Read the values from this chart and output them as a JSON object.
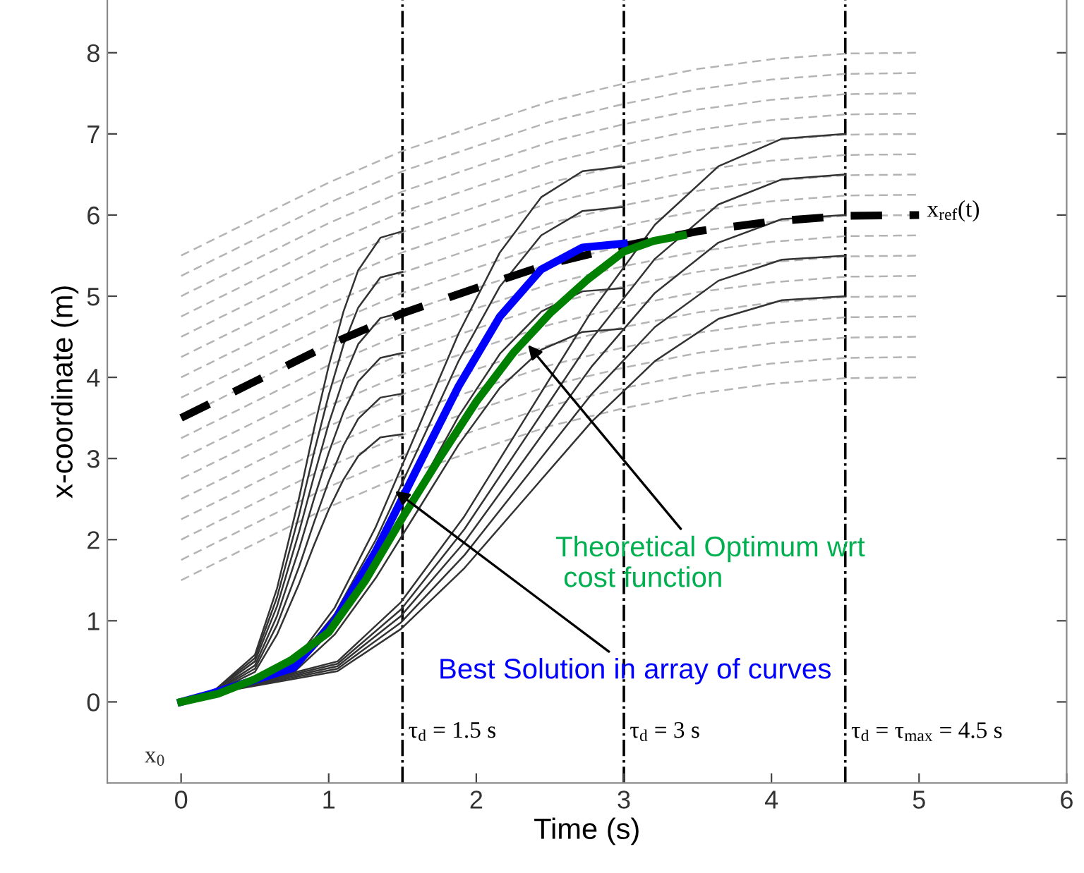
{
  "chart_data": {
    "type": "line",
    "xlabel": "Time (s)",
    "ylabel": "x-coordinate (m)",
    "x": [
      0,
      0.5,
      1,
      1.5,
      2,
      2.5,
      3,
      3.5,
      4,
      4.5,
      5
    ],
    "xlim": [
      -0.5,
      6
    ],
    "ylim": [
      -1,
      8.65
    ],
    "xticks": [
      0,
      1,
      2,
      3,
      4,
      5,
      6
    ],
    "yticks": [
      0,
      1,
      2,
      3,
      4,
      5,
      6,
      7,
      8
    ],
    "grid": false,
    "legend": false,
    "series": [
      {
        "color": "#b4b4b4",
        "line_style": "dashed",
        "values": [
          1.5,
          1.95,
          2.4,
          2.79,
          3.1,
          3.4,
          3.62,
          3.8,
          3.92,
          3.99,
          4
        ]
      },
      {
        "color": "#b4b4b4",
        "line_style": "dashed",
        "values": [
          1.75,
          2.2,
          2.65,
          3.04,
          3.35,
          3.65,
          3.87,
          4.05,
          4.17,
          4.24,
          4.25
        ]
      },
      {
        "color": "#b4b4b4",
        "line_style": "dashed",
        "values": [
          2,
          2.45,
          2.9,
          3.29,
          3.6,
          3.9,
          4.12,
          4.3,
          4.42,
          4.49,
          4.5
        ]
      },
      {
        "color": "#b4b4b4",
        "line_style": "dashed",
        "values": [
          2.25,
          2.7,
          3.15,
          3.54,
          3.85,
          4.15,
          4.37,
          4.55,
          4.67,
          4.74,
          4.75
        ]
      },
      {
        "color": "#b4b4b4",
        "line_style": "dashed",
        "values": [
          2.5,
          2.95,
          3.4,
          3.79,
          4.1,
          4.4,
          4.62,
          4.8,
          4.92,
          4.99,
          5
        ]
      },
      {
        "color": "#b4b4b4",
        "line_style": "dashed",
        "values": [
          2.75,
          3.2,
          3.65,
          4.04,
          4.35,
          4.65,
          4.87,
          5.05,
          5.17,
          5.24,
          5.25
        ]
      },
      {
        "color": "#b4b4b4",
        "line_style": "dashed",
        "values": [
          3,
          3.45,
          3.9,
          4.29,
          4.6,
          4.9,
          5.12,
          5.3,
          5.42,
          5.49,
          5.5
        ]
      },
      {
        "color": "#b4b4b4",
        "line_style": "dashed",
        "values": [
          3.25,
          3.7,
          4.15,
          4.54,
          4.85,
          5.15,
          5.37,
          5.55,
          5.67,
          5.74,
          5.75
        ]
      },
      {
        "color": "#b4b4b4",
        "line_style": "dashed",
        "values": [
          3.5,
          3.95,
          4.4,
          4.79,
          5.1,
          5.4,
          5.62,
          5.8,
          5.92,
          5.99,
          6
        ]
      },
      {
        "color": "#b4b4b4",
        "line_style": "dashed",
        "values": [
          3.75,
          4.2,
          4.65,
          5.04,
          5.35,
          5.65,
          5.87,
          6.05,
          6.17,
          6.24,
          6.25
        ]
      },
      {
        "color": "#b4b4b4",
        "line_style": "dashed",
        "values": [
          4,
          4.45,
          4.9,
          5.29,
          5.6,
          5.9,
          6.12,
          6.3,
          6.42,
          6.49,
          6.5
        ]
      },
      {
        "color": "#b4b4b4",
        "line_style": "dashed",
        "values": [
          4.25,
          4.7,
          5.15,
          5.54,
          5.85,
          6.15,
          6.37,
          6.55,
          6.67,
          6.74,
          6.75
        ]
      },
      {
        "color": "#b4b4b4",
        "line_style": "dashed",
        "values": [
          4.5,
          4.95,
          5.4,
          5.79,
          6.1,
          6.4,
          6.62,
          6.8,
          6.92,
          6.99,
          7
        ]
      },
      {
        "color": "#b4b4b4",
        "line_style": "dashed",
        "values": [
          4.75,
          5.2,
          5.65,
          6.04,
          6.35,
          6.65,
          6.87,
          7.05,
          7.17,
          7.24,
          7.25
        ]
      },
      {
        "color": "#b4b4b4",
        "line_style": "dashed",
        "values": [
          5,
          5.45,
          5.9,
          6.29,
          6.6,
          6.9,
          7.12,
          7.3,
          7.42,
          7.49,
          7.5
        ]
      },
      {
        "color": "#b4b4b4",
        "line_style": "dashed",
        "values": [
          5.25,
          5.7,
          6.15,
          6.54,
          6.85,
          7.15,
          7.37,
          7.55,
          7.67,
          7.74,
          7.75
        ]
      },
      {
        "color": "#b4b4b4",
        "line_style": "dashed",
        "values": [
          5.5,
          5.95,
          6.4,
          6.79,
          7.1,
          7.4,
          7.62,
          7.8,
          7.92,
          7.99,
          8
        ]
      },
      {
        "color": "#333333",
        "line_style": "solid",
        "x": [
          0.2,
          0.5,
          0.65,
          0.8,
          0.9,
          1.0,
          1.1,
          1.2,
          1.35,
          1.5
        ],
        "values": [
          0.1,
          0.58,
          1.4,
          2.52,
          3.36,
          4.14,
          4.81,
          5.32,
          5.72,
          5.8
        ]
      },
      {
        "color": "#333333",
        "line_style": "solid",
        "x": [
          0.2,
          0.5,
          0.65,
          0.8,
          0.9,
          1.0,
          1.1,
          1.2,
          1.35,
          1.5
        ],
        "values": [
          0.1,
          0.54,
          1.29,
          2.31,
          3.07,
          3.78,
          4.4,
          4.86,
          5.23,
          5.3
        ]
      },
      {
        "color": "#333333",
        "line_style": "solid",
        "x": [
          0.2,
          0.5,
          0.65,
          0.8,
          0.9,
          1.0,
          1.1,
          1.2,
          1.35,
          1.5
        ],
        "values": [
          0.1,
          0.5,
          1.18,
          2.1,
          2.78,
          3.43,
          3.98,
          4.41,
          4.73,
          4.8
        ]
      },
      {
        "color": "#333333",
        "line_style": "solid",
        "x": [
          0.2,
          0.5,
          0.65,
          0.8,
          0.9,
          1.0,
          1.1,
          1.2,
          1.35,
          1.5
        ],
        "values": [
          0.1,
          0.45,
          1.06,
          1.89,
          2.5,
          3.07,
          3.57,
          3.95,
          4.24,
          4.3
        ]
      },
      {
        "color": "#333333",
        "line_style": "solid",
        "x": [
          0.2,
          0.5,
          0.65,
          0.8,
          0.9,
          1.0,
          1.1,
          1.2,
          1.35,
          1.5
        ],
        "values": [
          0.1,
          0.41,
          0.95,
          1.67,
          2.21,
          2.72,
          3.16,
          3.49,
          3.75,
          3.8
        ]
      },
      {
        "color": "#333333",
        "line_style": "solid",
        "x": [
          0.2,
          0.5,
          0.65,
          0.8,
          0.9,
          1.0,
          1.1,
          1.2,
          1.35,
          1.5
        ],
        "values": [
          0.1,
          0.37,
          0.83,
          1.46,
          1.93,
          2.37,
          2.74,
          3.03,
          3.26,
          3.3
        ]
      },
      {
        "color": "#333333",
        "line_style": "solid",
        "x": [
          0.2,
          0.76,
          1.04,
          1.32,
          1.6,
          1.88,
          2.16,
          2.44,
          2.72,
          3.0
        ],
        "values": [
          0.1,
          0.48,
          1.16,
          2.16,
          3.35,
          4.54,
          5.54,
          6.22,
          6.54,
          6.6
        ]
      },
      {
        "color": "#333333",
        "line_style": "solid",
        "x": [
          0.2,
          0.76,
          1.04,
          1.32,
          1.6,
          1.88,
          2.16,
          2.44,
          2.72,
          3.0
        ],
        "values": [
          0.1,
          0.45,
          1.08,
          2.0,
          3.1,
          4.2,
          5.12,
          5.75,
          6.05,
          6.1
        ]
      },
      {
        "color": "#333333",
        "line_style": "solid",
        "x": [
          0.2,
          0.76,
          1.04,
          1.32,
          1.6,
          1.88,
          2.16,
          2.44,
          2.72,
          3.0
        ],
        "values": [
          0.1,
          0.39,
          0.92,
          1.69,
          2.6,
          3.52,
          4.29,
          4.81,
          5.06,
          5.1
        ]
      },
      {
        "color": "#333333",
        "line_style": "solid",
        "x": [
          0.2,
          0.76,
          1.04,
          1.32,
          1.6,
          1.88,
          2.16,
          2.44,
          2.72,
          3.0
        ],
        "values": [
          0.1,
          0.36,
          0.83,
          1.53,
          2.35,
          3.17,
          3.87,
          4.34,
          4.56,
          4.6
        ]
      },
      {
        "color": "#333333",
        "line_style": "solid",
        "x": [
          0.2,
          1.06,
          1.49,
          1.92,
          2.35,
          2.78,
          3.21,
          3.64,
          4.07,
          4.5
        ],
        "values": [
          0.1,
          0.5,
          1.23,
          2.29,
          3.55,
          4.81,
          5.88,
          6.6,
          6.94,
          7.0
        ]
      },
      {
        "color": "#333333",
        "line_style": "solid",
        "x": [
          0.2,
          1.06,
          1.49,
          1.92,
          2.35,
          2.78,
          3.21,
          3.64,
          4.07,
          4.5
        ],
        "values": [
          0.1,
          0.47,
          1.14,
          2.13,
          3.3,
          4.47,
          5.46,
          6.13,
          6.44,
          6.5
        ]
      },
      {
        "color": "#333333",
        "line_style": "solid",
        "x": [
          0.2,
          1.06,
          1.49,
          1.92,
          2.35,
          2.78,
          3.21,
          3.64,
          4.07,
          4.5
        ],
        "values": [
          0.1,
          0.44,
          1.06,
          1.97,
          3.05,
          4.13,
          5.04,
          5.66,
          5.95,
          6.0
        ]
      },
      {
        "color": "#333333",
        "line_style": "solid",
        "x": [
          0.2,
          1.06,
          1.49,
          1.92,
          2.35,
          2.78,
          3.21,
          3.64,
          4.07,
          4.5
        ],
        "values": [
          0.1,
          0.41,
          0.98,
          1.81,
          2.8,
          3.79,
          4.62,
          5.19,
          5.45,
          5.5
        ]
      },
      {
        "color": "#333333",
        "line_style": "solid",
        "x": [
          0.2,
          1.06,
          1.49,
          1.92,
          2.35,
          2.78,
          3.21,
          3.64,
          4.07,
          4.5
        ],
        "values": [
          0.1,
          0.38,
          0.9,
          1.65,
          2.55,
          3.45,
          4.2,
          4.72,
          4.95,
          5.0
        ]
      },
      {
        "name": "x$_{ref}$(t)",
        "color": "#000000",
        "line_style": "dashed",
        "values": [
          3.5,
          3.95,
          4.4,
          4.79,
          5.1,
          5.4,
          5.62,
          5.8,
          5.92,
          5.99,
          6.0
        ]
      },
      {
        "color": "#0000ff",
        "line_style": "solid",
        "x": [
          0,
          0.2,
          0.76,
          1.04,
          1.32,
          1.6,
          1.88,
          2.16,
          2.44,
          2.72,
          3.0
        ],
        "values": [
          0,
          0.1,
          0.42,
          1.0,
          1.86,
          2.88,
          3.89,
          4.75,
          5.33,
          5.6,
          5.65
        ]
      },
      {
        "color": "#008000",
        "line_style": "solid",
        "x": [
          0,
          0.25,
          0.5,
          0.75,
          1,
          1.25,
          1.5,
          1.75,
          2,
          2.25,
          2.5,
          2.75,
          3,
          3.2,
          3.4
        ],
        "values": [
          0,
          0.1,
          0.28,
          0.52,
          0.86,
          1.5,
          2.27,
          3.0,
          3.7,
          4.3,
          4.79,
          5.2,
          5.55,
          5.68,
          5.75
        ]
      }
    ],
    "ref_lines": [
      {
        "axis": "x",
        "value": 1.5,
        "label": "τ$_{d}$ = 1.5 s"
      },
      {
        "axis": "x",
        "value": 3,
        "label": "τ$_{d}$ = 3 s"
      },
      {
        "axis": "x",
        "value": 4.5,
        "label": "τ$_{d}$ = τ$_{max}$ = 4.5 s"
      }
    ],
    "annotations": [
      {
        "text": "x$_{0}$",
        "x": 0,
        "y": 0
      },
      {
        "text": "Best Solution in array of curves",
        "x": 1.45,
        "y": 2.6
      },
      {
        "text": "Theoretical Optimum wrt\n cost function",
        "x": 2.35,
        "y": 4.4
      }
    ]
  }
}
